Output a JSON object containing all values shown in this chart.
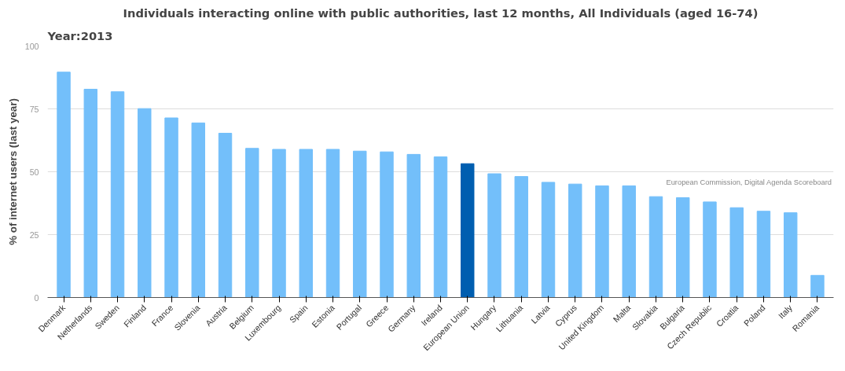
{
  "chart_data": {
    "type": "bar",
    "title": "Individuals interacting online with public authorities, last 12 months, All Individuals (aged 16-74)",
    "subtitle": "Year:2013",
    "ylabel": "% of internet users (last year)",
    "categories": [
      "Denmark",
      "Netherlands",
      "Sweden",
      "Finland",
      "France",
      "Slovenia",
      "Austria",
      "Belgium",
      "Luxembourg",
      "Spain",
      "Estonia",
      "Portugal",
      "Greece",
      "Germany",
      "Ireland",
      "European Union",
      "Hungary",
      "Lithuania",
      "Latvia",
      "Cyprus",
      "United Kingdom",
      "Malta",
      "Slovakia",
      "Bulgaria",
      "Czech Republic",
      "Croatia",
      "Poland",
      "Italy",
      "Romania"
    ],
    "values": [
      89.6,
      82.8,
      81.8,
      75.1,
      71.4,
      69.4,
      65.3,
      59.3,
      58.9,
      58.9,
      58.9,
      58.2,
      57.9,
      56.9,
      55.9,
      53.2,
      49.2,
      48.1,
      45.8,
      45.1,
      44.4,
      44.4,
      40.1,
      39.7,
      38.0,
      35.7,
      34.3,
      33.7,
      8.8
    ],
    "colors": [
      "#73bffa",
      "#73bffa",
      "#73bffa",
      "#73bffa",
      "#73bffa",
      "#73bffa",
      "#73bffa",
      "#73bffa",
      "#73bffa",
      "#73bffa",
      "#73bffa",
      "#73bffa",
      "#73bffa",
      "#73bffa",
      "#73bffa",
      "#005eb0",
      "#73bffa",
      "#73bffa",
      "#73bffa",
      "#73bffa",
      "#73bffa",
      "#73bffa",
      "#73bffa",
      "#73bffa",
      "#73bffa",
      "#73bffa",
      "#73bffa",
      "#73bffa",
      "#73bffa"
    ],
    "ylim": [
      0,
      100
    ],
    "yticks": [
      0,
      25,
      50,
      75,
      100
    ],
    "grid": "y",
    "annotations": [
      "European Commission, Digital Agenda Scoreboard"
    ]
  }
}
